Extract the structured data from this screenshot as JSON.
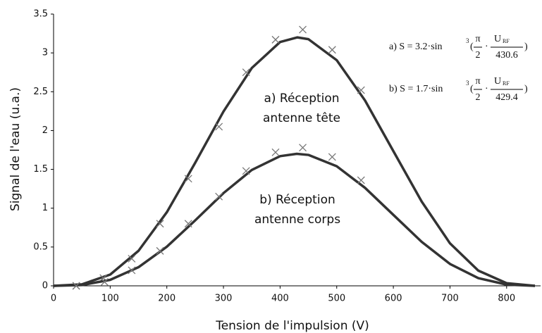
{
  "chart_data": {
    "type": "line",
    "xlabel": "Tension de l'impulsion (V)",
    "ylabel": "Signal de l'eau (u.a.)",
    "xlim": [
      0,
      860
    ],
    "xticks": [
      0,
      100,
      200,
      300,
      400,
      500,
      600,
      700,
      800
    ],
    "ylim": [
      0,
      3.5
    ],
    "yticks": [
      0,
      0.5,
      1,
      1.5,
      2,
      2.5,
      3,
      3.5
    ],
    "grid": false,
    "series": [
      {
        "color": "#333333",
        "x": [
          0,
          50,
          100,
          150,
          200,
          250,
          300,
          350,
          400,
          430.6,
          450,
          500,
          550,
          600,
          650,
          700,
          750,
          800,
          850
        ],
        "values": [
          0,
          0.019,
          0.145,
          0.451,
          0.948,
          1.583,
          2.245,
          2.805,
          3.14,
          3.2,
          3.177,
          2.906,
          2.387,
          1.735,
          1.086,
          0.547,
          0.196,
          0.034,
          0
        ],
        "marker_x": [
          40,
          88,
          138,
          188,
          238,
          292,
          340,
          392,
          440,
          492,
          543
        ],
        "markers": [
          0,
          0.1,
          0.35,
          0.8,
          1.38,
          2.05,
          2.75,
          3.17,
          3.3,
          3.04,
          2.52
        ]
      },
      {
        "color": "#333333",
        "x": [
          0,
          50,
          100,
          150,
          200,
          250,
          300,
          350,
          400,
          429.4,
          450,
          500,
          550,
          600,
          650,
          700,
          750,
          800,
          850
        ],
        "values": [
          0,
          0.01,
          0.077,
          0.24,
          0.504,
          0.842,
          1.194,
          1.492,
          1.67,
          1.7,
          1.686,
          1.54,
          1.262,
          0.914,
          0.567,
          0.282,
          0.099,
          0.016,
          0
        ],
        "marker_x": [
          40,
          90,
          138,
          188,
          238,
          292,
          340,
          392,
          440,
          492,
          543
        ],
        "markers": [
          0,
          0.05,
          0.2,
          0.45,
          0.8,
          1.15,
          1.48,
          1.72,
          1.78,
          1.66,
          1.36
        ]
      }
    ],
    "annotations": [
      {
        "line1": "a) Réception",
        "line2": "antenne tête"
      },
      {
        "line1": "b) Réception",
        "line2": "antenne corps"
      }
    ],
    "formulas": [
      {
        "prefix": "a)  S = 3.2·sin",
        "exp": "3",
        "num1": "π",
        "den1": "2",
        "num2": "U",
        "sub": "RF",
        "den2": "430.6"
      },
      {
        "prefix": "b)  S = 1.7·sin",
        "exp": "3",
        "num1": "π",
        "den1": "2",
        "num2": "U",
        "sub": "RF",
        "den2": "429.4"
      }
    ]
  }
}
